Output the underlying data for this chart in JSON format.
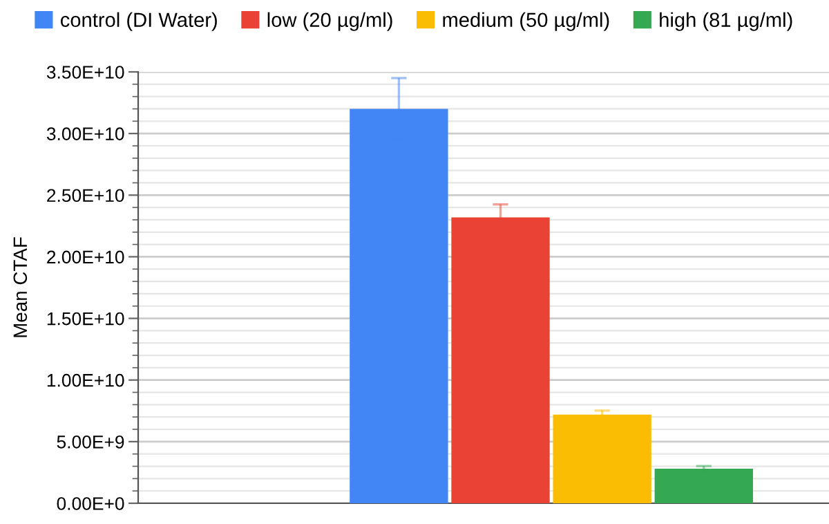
{
  "chart_data": {
    "type": "bar",
    "ylabel": "Mean CTAF",
    "categories": [
      null
    ],
    "series": [
      {
        "name": "control (DI Water)",
        "color": "#4285f4",
        "values": [
          32000000000.0
        ],
        "errors": [
          2500000000.0
        ]
      },
      {
        "name": "low (20 µg/ml)",
        "color": "#ea4335",
        "values": [
          23200000000.0
        ],
        "errors": [
          1050000000.0
        ]
      },
      {
        "name": "medium (50 µg/ml)",
        "color": "#fbbc04",
        "values": [
          7200000000.0
        ],
        "errors": [
          320000000.0
        ]
      },
      {
        "name": "high (81 µg/ml)",
        "color": "#34a853",
        "values": [
          2800000000.0
        ],
        "errors": [
          220000000.0
        ]
      }
    ],
    "ylim": [
      0,
      35000000000.0
    ],
    "yticks": [
      {
        "value": 0,
        "label": "0.00E+0"
      },
      {
        "value": 5000000000.0,
        "label": "5.00E+9"
      },
      {
        "value": 10000000000.0,
        "label": "1.00E+10"
      },
      {
        "value": 15000000000.0,
        "label": "1.50E+10"
      },
      {
        "value": 20000000000.0,
        "label": "2.00E+10"
      },
      {
        "value": 25000000000.0,
        "label": "2.50E+10"
      },
      {
        "value": 30000000000.0,
        "label": "3.00E+10"
      },
      {
        "value": 35000000000.0,
        "label": "3.50E+10"
      }
    ],
    "grid": "y",
    "legend": "top"
  }
}
